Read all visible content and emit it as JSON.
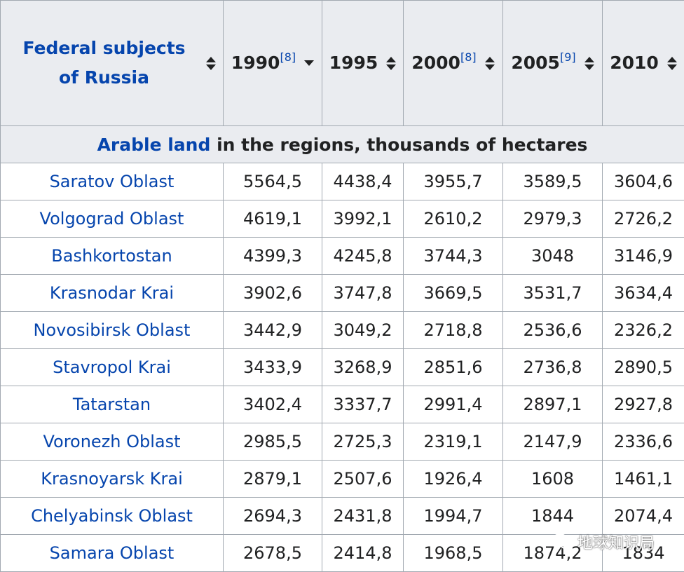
{
  "caption": {
    "link_text": "Arable land",
    "rest_text": " in the regions, thousands of hectares"
  },
  "headers": [
    {
      "label": "Federal subjects of Russia",
      "ref": "",
      "sort": "both"
    },
    {
      "label": "1990",
      "ref": "[8]",
      "sort": "desc"
    },
    {
      "label": "1995",
      "ref": "",
      "sort": "both"
    },
    {
      "label": "2000",
      "ref": "[8]",
      "sort": "both"
    },
    {
      "label": "2005",
      "ref": "[9]",
      "sort": "both"
    },
    {
      "label": "2010",
      "ref": "",
      "sort": "both"
    }
  ],
  "rows": [
    {
      "region": "Saratov Oblast",
      "values": [
        "5564,5",
        "4438,4",
        "3955,7",
        "3589,5",
        "3604,6"
      ]
    },
    {
      "region": "Volgograd Oblast",
      "values": [
        "4619,1",
        "3992,1",
        "2610,2",
        "2979,3",
        "2726,2"
      ]
    },
    {
      "region": "Bashkortostan",
      "values": [
        "4399,3",
        "4245,8",
        "3744,3",
        "3048",
        "3146,9"
      ]
    },
    {
      "region": "Krasnodar Krai",
      "values": [
        "3902,6",
        "3747,8",
        "3669,5",
        "3531,7",
        "3634,4"
      ]
    },
    {
      "region": "Novosibirsk Oblast",
      "values": [
        "3442,9",
        "3049,2",
        "2718,8",
        "2536,6",
        "2326,2"
      ]
    },
    {
      "region": "Stavropol Krai",
      "values": [
        "3433,9",
        "3268,9",
        "2851,6",
        "2736,8",
        "2890,5"
      ]
    },
    {
      "region": "Tatarstan",
      "values": [
        "3402,4",
        "3337,7",
        "2991,4",
        "2897,1",
        "2927,8"
      ]
    },
    {
      "region": "Voronezh Oblast",
      "values": [
        "2985,5",
        "2725,3",
        "2319,1",
        "2147,9",
        "2336,6"
      ]
    },
    {
      "region": "Krasnoyarsk Krai",
      "values": [
        "2879,1",
        "2507,6",
        "1926,4",
        "1608",
        "1461,1"
      ]
    },
    {
      "region": "Chelyabinsk Oblast",
      "values": [
        "2694,3",
        "2431,8",
        "1994,7",
        "1844",
        "2074,4"
      ]
    },
    {
      "region": "Samara Oblast",
      "values": [
        "2678,5",
        "2414,8",
        "1968,5",
        "1874,2",
        "1834"
      ]
    }
  ],
  "watermark": {
    "text": "地球知识局",
    "icon": "wechat-icon"
  }
}
